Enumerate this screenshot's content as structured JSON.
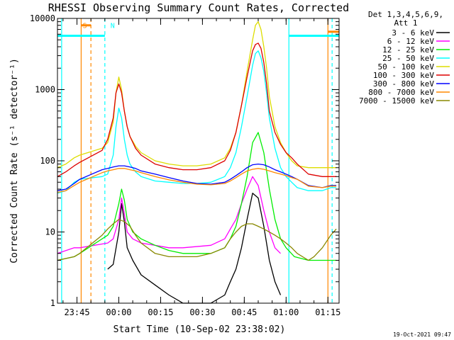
{
  "chart_data": {
    "type": "line",
    "title": "RHESSI Observing Summary Count Rates, Corrected",
    "xlabel": "Start Time (10-Sep-02 23:38:02)",
    "ylabel": "Corrected Count Rate (s⁻¹ detector⁻¹)",
    "y_scale": "log",
    "ylim": [
      1,
      10000
    ],
    "x_unit": "minutes since 23:38:02",
    "xlim": [
      0,
      101
    ],
    "x_ticks": [
      {
        "label": "23:45",
        "x": 7
      },
      {
        "label": "00:00",
        "x": 22
      },
      {
        "label": "00:15",
        "x": 37
      },
      {
        "label": "00:30",
        "x": 52
      },
      {
        "label": "00:45",
        "x": 67
      },
      {
        "label": "01:00",
        "x": 82
      },
      {
        "label": "01:15",
        "x": 97
      }
    ],
    "y_ticks": [
      {
        "label": "1",
        "y": 1
      },
      {
        "label": "10",
        "y": 10
      },
      {
        "label": "100",
        "y": 100
      },
      {
        "label": "1000",
        "y": 1000
      },
      {
        "label": "10000",
        "y": 10000
      }
    ],
    "legend": {
      "placement": "right",
      "header": [
        "Det 1,3,4,5,6,9,",
        "Att 1"
      ],
      "entries": [
        {
          "label": "3 - 6 keV",
          "color": "#000000"
        },
        {
          "label": "6 - 12 keV",
          "color": "#ff00ff"
        },
        {
          "label": "12 - 25 keV",
          "color": "#00ee00"
        },
        {
          "label": "25 - 50 keV",
          "color": "#00ffff"
        },
        {
          "label": "50 - 100 keV",
          "color": "#dddd00"
        },
        {
          "label": "100 - 300 keV",
          "color": "#dd0000"
        },
        {
          "label": "300 - 800 keV",
          "color": "#0000ff"
        },
        {
          "label": "800 - 7000 keV",
          "color": "#ff8800"
        },
        {
          "label": "7000 - 15000 keV",
          "color": "#888800"
        }
      ]
    },
    "annotations": [
      {
        "label": "S",
        "x": 8,
        "color": "#ff8800"
      },
      {
        "label": "N",
        "x": 18,
        "color": "#00ffff"
      }
    ],
    "vertical_markers": [
      {
        "x": 1.5,
        "color": "#00ffff",
        "style": "solid"
      },
      {
        "x": 8.5,
        "color": "#ff8800",
        "style": "solid"
      },
      {
        "x": 12,
        "color": "#ff8800",
        "style": "dashed"
      },
      {
        "x": 17,
        "color": "#00ffff",
        "style": "dashed"
      },
      {
        "x": 83,
        "color": "#00ffff",
        "style": "solid"
      },
      {
        "x": 97,
        "color": "#ff8800",
        "style": "solid"
      },
      {
        "x": 98.5,
        "color": "#00ffff",
        "style": "dashed"
      }
    ],
    "horizontal_bars": [
      {
        "x0": 0,
        "x1": 17,
        "y": 5700,
        "color": "#00ffff"
      },
      {
        "x0": 8.5,
        "x1": 12,
        "y": 8000,
        "color": "#ff8800"
      },
      {
        "x0": 83,
        "x1": 101,
        "y": 5700,
        "color": "#00ffff"
      },
      {
        "x0": 97,
        "x1": 101,
        "y": 6500,
        "color": "#ff8800"
      }
    ],
    "series": [
      {
        "name": "3 - 6 keV",
        "color": "#000000",
        "x": [
          18,
          20,
          22,
          23,
          24,
          25,
          27,
          30,
          35,
          40,
          45,
          55,
          60,
          62,
          64,
          66,
          68,
          70,
          72,
          74,
          76,
          78,
          80
        ],
        "y": [
          3,
          3.5,
          10,
          25,
          14,
          6,
          4,
          2.5,
          1.8,
          1.3,
          1,
          1,
          1.3,
          2,
          3,
          6,
          15,
          35,
          30,
          12,
          4,
          2,
          1.3
        ]
      },
      {
        "name": "6 - 12 keV",
        "color": "#ff00ff",
        "x": [
          0,
          6,
          8,
          18,
          20,
          22,
          23,
          24,
          25,
          27,
          30,
          35,
          40,
          45,
          55,
          60,
          62,
          64,
          66,
          68,
          70,
          72,
          74,
          76,
          78,
          80
        ],
        "y": [
          5,
          6,
          6,
          7,
          8,
          15,
          30,
          18,
          10,
          8,
          7,
          6.5,
          6,
          6,
          6.5,
          8,
          11,
          15,
          25,
          40,
          60,
          45,
          20,
          10,
          6,
          5
        ]
      },
      {
        "name": "12 - 25 keV",
        "color": "#00ee00",
        "x": [
          0,
          6,
          8,
          18,
          20,
          22,
          23,
          24,
          25,
          27,
          30,
          35,
          40,
          45,
          55,
          60,
          62,
          64,
          66,
          68,
          70,
          72,
          74,
          76,
          78,
          80,
          82,
          85,
          90,
          95,
          98,
          100
        ],
        "y": [
          4,
          4.5,
          5,
          9,
          12,
          25,
          40,
          28,
          15,
          10,
          8,
          6.5,
          5.5,
          5,
          5,
          6,
          8,
          12,
          25,
          60,
          180,
          250,
          130,
          40,
          15,
          8,
          6,
          4.5,
          4,
          4,
          4,
          4
        ]
      },
      {
        "name": "25 - 50 keV",
        "color": "#00ffff",
        "x": [
          0,
          3,
          6,
          8,
          16,
          18,
          20,
          21,
          22,
          23,
          24,
          25,
          26,
          28,
          30,
          35,
          40,
          45,
          50,
          55,
          60,
          62,
          64,
          66,
          68,
          70,
          71,
          72,
          73,
          74,
          75,
          76,
          78,
          80,
          82,
          84,
          86,
          90,
          95,
          98,
          100
        ],
        "y": [
          35,
          38,
          50,
          55,
          60,
          65,
          120,
          300,
          550,
          400,
          200,
          120,
          90,
          70,
          60,
          52,
          50,
          48,
          48,
          50,
          60,
          80,
          130,
          300,
          800,
          2200,
          3200,
          3500,
          2800,
          1800,
          900,
          400,
          150,
          80,
          60,
          50,
          42,
          38,
          38,
          42,
          42
        ]
      },
      {
        "name": "50 - 100 keV",
        "color": "#dddd00",
        "x": [
          0,
          3,
          6,
          8,
          16,
          18,
          20,
          21,
          22,
          23,
          24,
          25,
          26,
          28,
          30,
          35,
          40,
          45,
          50,
          55,
          60,
          62,
          64,
          66,
          68,
          70,
          71,
          72,
          73,
          74,
          75,
          76,
          78,
          80,
          82,
          84,
          86,
          90,
          95,
          98,
          100
        ],
        "y": [
          80,
          90,
          110,
          120,
          150,
          180,
          350,
          900,
          1500,
          1000,
          500,
          300,
          220,
          160,
          130,
          100,
          90,
          85,
          85,
          90,
          110,
          150,
          250,
          600,
          1800,
          5000,
          8000,
          9000,
          7000,
          4000,
          2000,
          800,
          300,
          180,
          130,
          100,
          85,
          80,
          80,
          80,
          80
        ]
      },
      {
        "name": "100 - 300 keV",
        "color": "#dd0000",
        "x": [
          0,
          3,
          6,
          8,
          16,
          18,
          20,
          21,
          22,
          23,
          24,
          25,
          26,
          28,
          30,
          35,
          40,
          45,
          50,
          55,
          60,
          62,
          64,
          66,
          68,
          70,
          71,
          72,
          73,
          74,
          75,
          76,
          78,
          80,
          82,
          84,
          86,
          90,
          95,
          98,
          100
        ],
        "y": [
          60,
          70,
          85,
          95,
          140,
          200,
          400,
          900,
          1200,
          900,
          500,
          300,
          220,
          150,
          120,
          90,
          80,
          75,
          75,
          80,
          100,
          140,
          250,
          600,
          1500,
          3500,
          4300,
          4500,
          3800,
          2400,
          1200,
          500,
          250,
          170,
          130,
          110,
          90,
          65,
          60,
          60,
          60
        ]
      },
      {
        "name": "300 - 800 keV",
        "color": "#0000ff",
        "x": [
          0,
          3,
          6,
          8,
          16,
          18,
          20,
          22,
          24,
          26,
          28,
          30,
          35,
          40,
          45,
          50,
          55,
          60,
          62,
          64,
          66,
          68,
          70,
          72,
          74,
          76,
          78,
          80,
          82,
          84,
          86,
          90,
          95,
          98,
          100
        ],
        "y": [
          38,
          40,
          48,
          55,
          75,
          78,
          82,
          85,
          85,
          82,
          78,
          72,
          65,
          58,
          52,
          48,
          47,
          50,
          55,
          62,
          70,
          80,
          88,
          90,
          88,
          82,
          75,
          70,
          65,
          60,
          55,
          45,
          42,
          45,
          45
        ]
      },
      {
        "name": "800 - 7000 keV",
        "color": "#ff8800",
        "x": [
          0,
          3,
          6,
          8,
          16,
          18,
          20,
          22,
          24,
          26,
          28,
          30,
          35,
          40,
          45,
          50,
          55,
          60,
          62,
          64,
          66,
          68,
          70,
          72,
          74,
          76,
          78,
          80,
          82,
          84,
          86,
          90,
          95,
          98,
          100
        ],
        "y": [
          36,
          38,
          45,
          50,
          68,
          72,
          75,
          78,
          78,
          75,
          72,
          68,
          60,
          54,
          50,
          47,
          46,
          48,
          52,
          58,
          65,
          72,
          76,
          78,
          76,
          72,
          68,
          65,
          62,
          58,
          55,
          44,
          42,
          44,
          44
        ]
      },
      {
        "name": "7000 - 15000 keV",
        "color": "#888800",
        "x": [
          0,
          6,
          8,
          16,
          18,
          20,
          22,
          24,
          26,
          28,
          30,
          35,
          40,
          45,
          50,
          55,
          60,
          62,
          64,
          66,
          68,
          70,
          72,
          74,
          76,
          78,
          80,
          82,
          84,
          86,
          90,
          92,
          95,
          98,
          100
        ],
        "y": [
          4,
          4.5,
          5,
          9,
          11,
          13,
          15,
          14,
          12,
          9,
          7,
          5,
          4.5,
          4.5,
          4.5,
          5,
          6,
          8,
          10,
          12,
          13,
          13,
          12,
          11,
          10,
          9,
          8,
          7,
          6,
          5,
          4,
          4.5,
          6,
          9,
          11
        ]
      }
    ]
  },
  "footer": {
    "timestamp": "19-Oct-2021 09:47"
  }
}
